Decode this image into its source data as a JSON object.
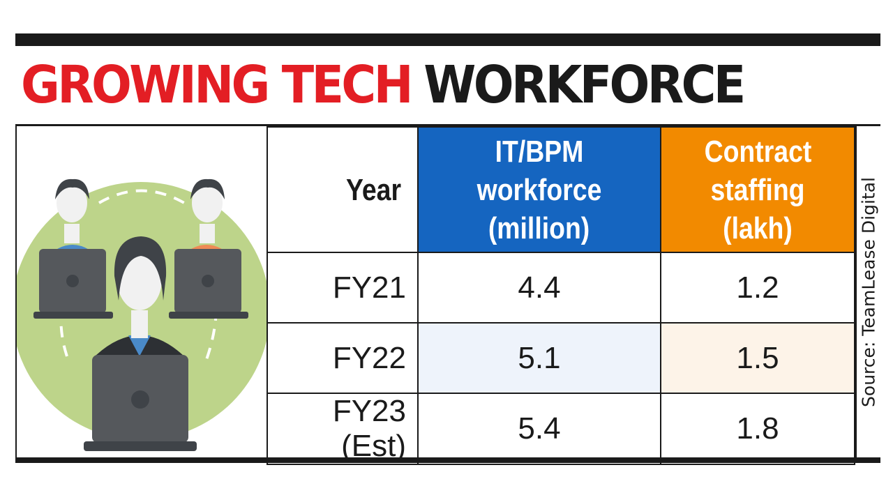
{
  "headline": {
    "part1": "GROWING TECH",
    "part2": "WORKFORCE"
  },
  "source": "Source: TeamLease Digital",
  "colors": {
    "headline_red": "#e31e24",
    "blue_header": "#1565c0",
    "orange_header": "#f28a00",
    "illustration_green": "#bdd48a"
  },
  "chart_data": {
    "type": "table",
    "title": "GROWING TECH WORKFORCE",
    "columns": [
      "Year",
      "IT/BPM workforce (million)",
      "Contract staffing (lakh)"
    ],
    "header_lines": {
      "year": [
        "Year"
      ],
      "workforce": [
        "IT/BPM workforce",
        "(million)"
      ],
      "contract": [
        "Contract",
        "staffing (lakh)"
      ]
    },
    "rows": [
      [
        "FY21",
        "4.4",
        "1.2"
      ],
      [
        "FY22",
        "5.1",
        "1.5"
      ],
      [
        "FY23 (Est)",
        "5.4",
        "1.8"
      ]
    ],
    "series": [
      {
        "name": "IT/BPM workforce (million)",
        "values": [
          4.4,
          5.1,
          5.4
        ]
      },
      {
        "name": "Contract staffing (lakh)",
        "values": [
          1.2,
          1.5,
          1.8
        ]
      }
    ],
    "categories": [
      "FY21",
      "FY22",
      "FY23 (Est)"
    ],
    "source": "Source: TeamLease Digital"
  }
}
